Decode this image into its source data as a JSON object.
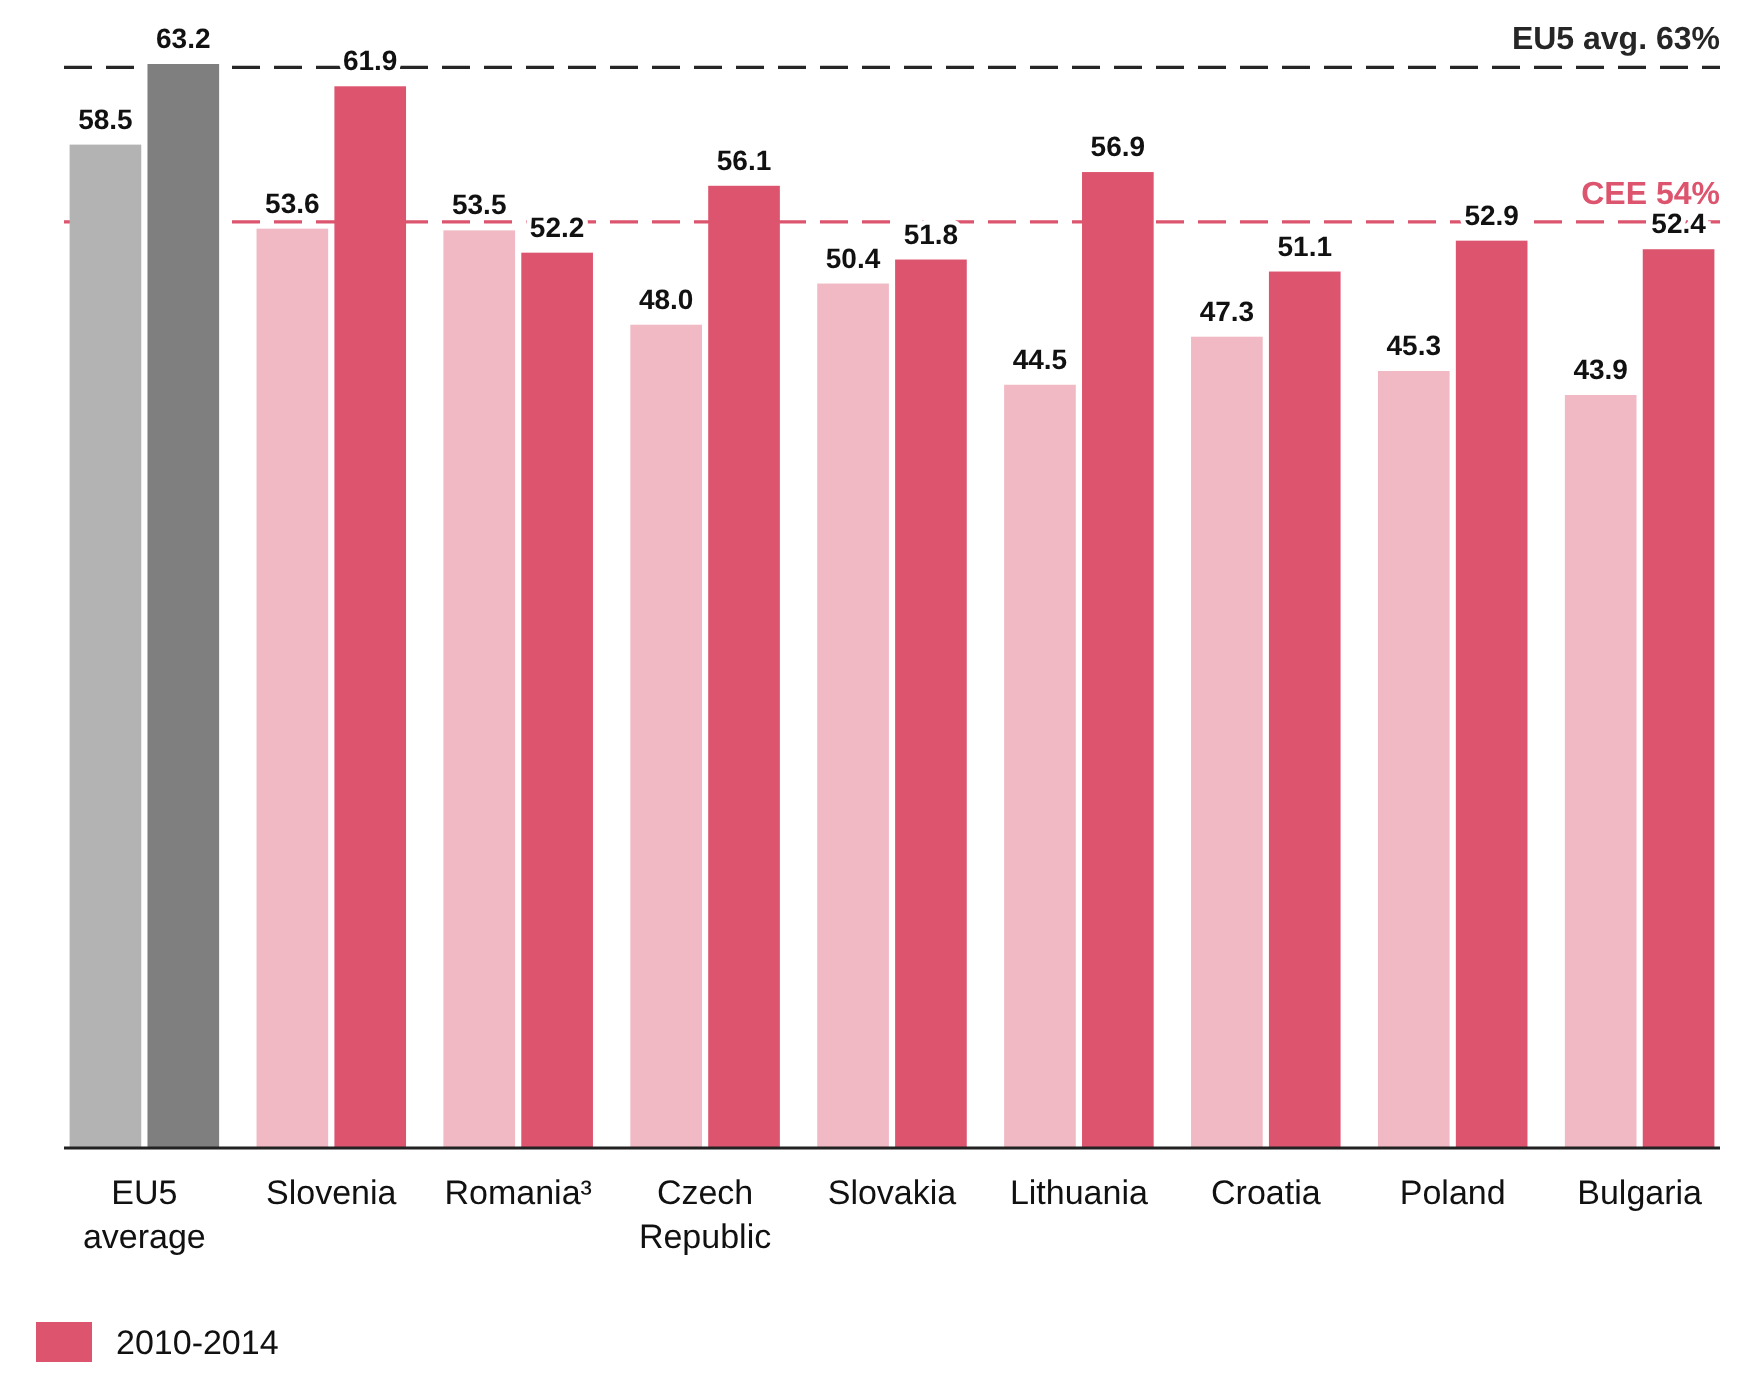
{
  "chart_data": {
    "type": "bar",
    "categories": [
      "EU5 average",
      "Slovenia",
      "Romania³",
      "Czech Republic",
      "Slovakia",
      "Lithuania",
      "Croatia",
      "Poland",
      "Bulgaria"
    ],
    "series": [
      {
        "colors": [
          "#b3b3b3",
          "#f0b9c4",
          "#f0b9c4",
          "#f0b9c4",
          "#f0b9c4",
          "#f0b9c4",
          "#f0b9c4",
          "#f0b9c4",
          "#f0b9c4"
        ],
        "values": [
          58.5,
          53.6,
          53.5,
          48.0,
          50.4,
          44.5,
          47.3,
          45.3,
          43.9
        ],
        "value_labels": [
          "58.5",
          "53.6",
          "53.5",
          "48.0",
          "50.4",
          "44.5",
          "47.3",
          "45.3",
          "43.9"
        ]
      },
      {
        "name": "2010-2014",
        "color": "#dc546e",
        "colors": [
          "#7f7f7f",
          "#dc546e",
          "#dc546e",
          "#dc546e",
          "#dc546e",
          "#dc546e",
          "#dc546e",
          "#dc546e",
          "#dc546e"
        ],
        "values": [
          63.2,
          61.9,
          52.2,
          56.1,
          51.8,
          56.9,
          51.1,
          52.9,
          52.4
        ],
        "value_labels": [
          "63.2",
          "61.9",
          "52.2",
          "56.1",
          "51.8",
          "56.9",
          "51.1",
          "52.9",
          "52.4"
        ]
      }
    ],
    "tick_labels": "x",
    "legend": "bottom left",
    "ref_lines": [
      {
        "axis": "y",
        "value": 63,
        "label": "EU5 avg. 63%",
        "color": "#262626",
        "line_style": "dashed"
      },
      {
        "axis": "y",
        "value": 54,
        "label": "CEE 54%",
        "color": "#dc546e",
        "line_style": "dashed"
      }
    ]
  }
}
